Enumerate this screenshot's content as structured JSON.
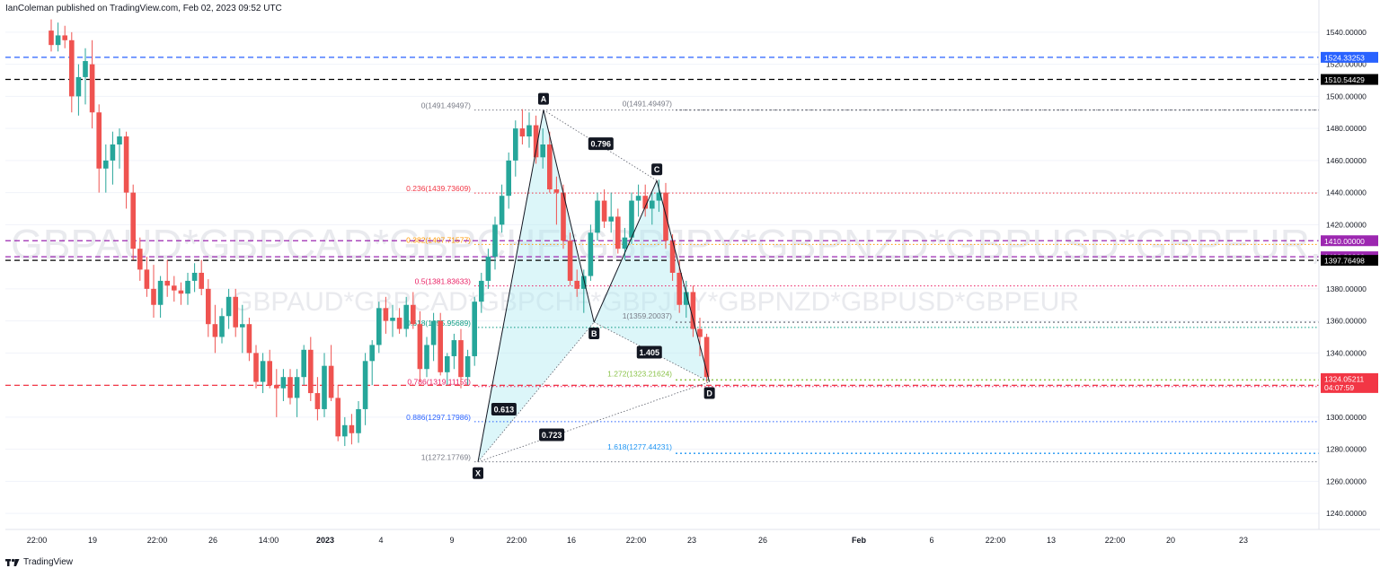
{
  "header": {
    "attribution": "IanColeman published on TradingView.com, Feb 02, 2023 09:52 UTC"
  },
  "footer": {
    "brand": "TradingView"
  },
  "watermark": {
    "line1": "GBPAUD*GBPCAD*GBPCHF*GBPJPY*GBPNZD*GBPUSD*GBPEUR, 8h",
    "line2": "GBPAUD*GBPCAD*GBPCHF*GBPJPY*GBPNZD*GBPUSD*GBPEUR"
  },
  "chart_data": {
    "type": "candlestick",
    "timeframe": "8h",
    "ylim": [
      1230,
      1550
    ],
    "y_ticks": [
      1240,
      1260,
      1280,
      1300,
      1320,
      1340,
      1360,
      1380,
      1400,
      1420,
      1440,
      1460,
      1480,
      1500,
      1520,
      1540
    ],
    "x_ticks": [
      "22:00",
      "19",
      "22:00",
      "26",
      "14:00",
      "2023",
      "4",
      "9",
      "22:00",
      "16",
      "22:00",
      "23",
      "26",
      "Feb",
      "6",
      "22:00",
      "13",
      "22:00",
      "20",
      "23"
    ],
    "candles": [
      [
        1541,
        1548,
        1528,
        1532
      ],
      [
        1532,
        1546,
        1528,
        1538
      ],
      [
        1538,
        1544,
        1530,
        1535
      ],
      [
        1535,
        1540,
        1490,
        1500
      ],
      [
        1500,
        1520,
        1488,
        1512
      ],
      [
        1512,
        1530,
        1495,
        1522
      ],
      [
        1520,
        1535,
        1480,
        1490
      ],
      [
        1490,
        1495,
        1440,
        1455
      ],
      [
        1455,
        1470,
        1440,
        1460
      ],
      [
        1460,
        1478,
        1445,
        1470
      ],
      [
        1470,
        1480,
        1455,
        1475
      ],
      [
        1475,
        1478,
        1430,
        1440
      ],
      [
        1440,
        1445,
        1398,
        1405
      ],
      [
        1405,
        1412,
        1385,
        1392
      ],
      [
        1392,
        1400,
        1375,
        1380
      ],
      [
        1380,
        1395,
        1362,
        1370
      ],
      [
        1370,
        1388,
        1362,
        1385
      ],
      [
        1385,
        1398,
        1375,
        1382
      ],
      [
        1382,
        1388,
        1372,
        1379
      ],
      [
        1379,
        1384,
        1370,
        1377
      ],
      [
        1377,
        1390,
        1370,
        1385
      ],
      [
        1385,
        1396,
        1378,
        1390
      ],
      [
        1390,
        1398,
        1376,
        1380
      ],
      [
        1380,
        1386,
        1350,
        1358
      ],
      [
        1358,
        1370,
        1340,
        1350
      ],
      [
        1350,
        1368,
        1346,
        1363
      ],
      [
        1363,
        1380,
        1355,
        1375
      ],
      [
        1375,
        1380,
        1350,
        1356
      ],
      [
        1356,
        1370,
        1340,
        1358
      ],
      [
        1358,
        1362,
        1335,
        1340
      ],
      [
        1340,
        1345,
        1318,
        1322
      ],
      [
        1322,
        1340,
        1315,
        1335
      ],
      [
        1335,
        1342,
        1318,
        1320
      ],
      [
        1320,
        1330,
        1300,
        1318
      ],
      [
        1318,
        1330,
        1310,
        1325
      ],
      [
        1325,
        1330,
        1308,
        1312
      ],
      [
        1312,
        1330,
        1300,
        1325
      ],
      [
        1325,
        1345,
        1320,
        1342
      ],
      [
        1342,
        1350,
        1310,
        1315
      ],
      [
        1315,
        1325,
        1298,
        1305
      ],
      [
        1305,
        1340,
        1300,
        1332
      ],
      [
        1332,
        1345,
        1310,
        1312
      ],
      [
        1312,
        1320,
        1285,
        1288
      ],
      [
        1288,
        1300,
        1282,
        1295
      ],
      [
        1295,
        1302,
        1283,
        1290
      ],
      [
        1290,
        1310,
        1284,
        1305
      ],
      [
        1305,
        1340,
        1295,
        1335
      ],
      [
        1335,
        1348,
        1320,
        1345
      ],
      [
        1345,
        1372,
        1340,
        1368
      ],
      [
        1368,
        1375,
        1352,
        1360
      ],
      [
        1360,
        1370,
        1350,
        1362
      ],
      [
        1362,
        1368,
        1352,
        1355
      ],
      [
        1355,
        1375,
        1350,
        1370
      ],
      [
        1370,
        1378,
        1355,
        1358
      ],
      [
        1358,
        1366,
        1322,
        1330
      ],
      [
        1330,
        1350,
        1325,
        1345
      ],
      [
        1345,
        1365,
        1335,
        1360
      ],
      [
        1360,
        1365,
        1326,
        1328
      ],
      [
        1328,
        1340,
        1320,
        1338
      ],
      [
        1338,
        1352,
        1330,
        1348
      ],
      [
        1348,
        1355,
        1318,
        1325
      ],
      [
        1325,
        1342,
        1320,
        1338
      ],
      [
        1338,
        1375,
        1332,
        1372
      ],
      [
        1372,
        1390,
        1365,
        1385
      ],
      [
        1385,
        1405,
        1380,
        1400
      ],
      [
        1400,
        1425,
        1392,
        1420
      ],
      [
        1420,
        1445,
        1415,
        1438
      ],
      [
        1438,
        1465,
        1430,
        1460
      ],
      [
        1460,
        1485,
        1450,
        1480
      ],
      [
        1480,
        1492,
        1470,
        1475
      ],
      [
        1475,
        1490,
        1468,
        1482
      ],
      [
        1482,
        1488,
        1458,
        1462
      ],
      [
        1462,
        1480,
        1455,
        1470
      ],
      [
        1470,
        1478,
        1440,
        1442
      ],
      [
        1442,
        1450,
        1420,
        1440
      ],
      [
        1440,
        1445,
        1405,
        1410
      ],
      [
        1410,
        1415,
        1382,
        1385
      ],
      [
        1385,
        1392,
        1375,
        1380
      ],
      [
        1380,
        1392,
        1365,
        1388
      ],
      [
        1388,
        1420,
        1385,
        1415
      ],
      [
        1415,
        1440,
        1410,
        1435
      ],
      [
        1435,
        1442,
        1418,
        1422
      ],
      [
        1422,
        1440,
        1415,
        1425
      ],
      [
        1425,
        1430,
        1402,
        1405
      ],
      [
        1405,
        1418,
        1398,
        1412
      ],
      [
        1412,
        1440,
        1408,
        1435
      ],
      [
        1435,
        1445,
        1425,
        1438
      ],
      [
        1438,
        1445,
        1425,
        1430
      ],
      [
        1430,
        1440,
        1420,
        1435
      ],
      [
        1435,
        1448,
        1428,
        1440
      ],
      [
        1440,
        1446,
        1405,
        1410
      ],
      [
        1410,
        1414,
        1385,
        1390
      ],
      [
        1390,
        1398,
        1365,
        1370
      ],
      [
        1370,
        1385,
        1362,
        1378
      ],
      [
        1378,
        1382,
        1350,
        1355
      ],
      [
        1355,
        1362,
        1338,
        1350
      ],
      [
        1350,
        1352,
        1322,
        1325
      ]
    ],
    "price_lines": [
      {
        "label": "1524.33253",
        "value": 1524.33253,
        "color": "#2962ff"
      },
      {
        "label": "1510.54429",
        "value": 1510.54429,
        "color": "#000000"
      },
      {
        "label": "1410.00000",
        "value": 1410.0,
        "color": "#9c27b0"
      },
      {
        "label": "1400.00000",
        "value": 1400.0,
        "color": "#9c27b0"
      },
      {
        "label": "1397.76498",
        "value": 1397.76498,
        "color": "#000000"
      },
      {
        "label": "1319.85833",
        "value": 1319.85833,
        "color": "#f23645"
      }
    ],
    "last_price": {
      "value": "1324.05211",
      "countdown": "04:07:59",
      "color": "#f23645"
    },
    "pattern_points": [
      {
        "label": "X",
        "index": 62.5,
        "price": 1272.1
      },
      {
        "label": "A",
        "index": 72.1,
        "price": 1491.5
      },
      {
        "label": "B",
        "index": 79.5,
        "price": 1359.2
      },
      {
        "label": "C",
        "index": 88.7,
        "price": 1447.5
      },
      {
        "label": "D",
        "index": 96.4,
        "price": 1322.0
      }
    ],
    "ratios": [
      {
        "label": "0.613",
        "index": 66.3,
        "price": 1305.0
      },
      {
        "label": "0.796",
        "index": 80.5,
        "price": 1470.5
      },
      {
        "label": "1.405",
        "index": 87.6,
        "price": 1340.5
      },
      {
        "label": "0.723",
        "index": 73.3,
        "price": 1289.0
      }
    ],
    "fib_left": [
      {
        "label": "0(1491.49497)",
        "price": 1491.49497,
        "color": "#787b86"
      },
      {
        "label": "0.236(1439.73609)",
        "price": 1439.73609,
        "color": "#f23645"
      },
      {
        "label": "0.382(1407.71577)",
        "price": 1407.71577,
        "color": "#ff9800"
      },
      {
        "label": "0.5(1381.83633)",
        "price": 1381.83633,
        "color": "#e91e63"
      },
      {
        "label": "0.618(1355.95689)",
        "price": 1355.95689,
        "color": "#089981"
      },
      {
        "label": "0.786(1319.11159)",
        "price": 1319.11159,
        "color": "#e91e63"
      },
      {
        "label": "0.886(1297.17986)",
        "price": 1297.17986,
        "color": "#2962ff"
      },
      {
        "label": "1(1272.17769)",
        "price": 1272.17769,
        "color": "#787b86"
      }
    ],
    "fib_right": [
      {
        "label": "0(1491.49497)",
        "price": 1491.49497,
        "color": "#787b86"
      },
      {
        "label": "1(1359.20037)",
        "price": 1359.20037,
        "color": "#787b86"
      },
      {
        "label": "1.272(1323.21624)",
        "price": 1323.21624,
        "color": "#8bc34a"
      },
      {
        "label": "1.618(1277.44231)",
        "price": 1277.44231,
        "color": "#2196f3"
      }
    ]
  }
}
